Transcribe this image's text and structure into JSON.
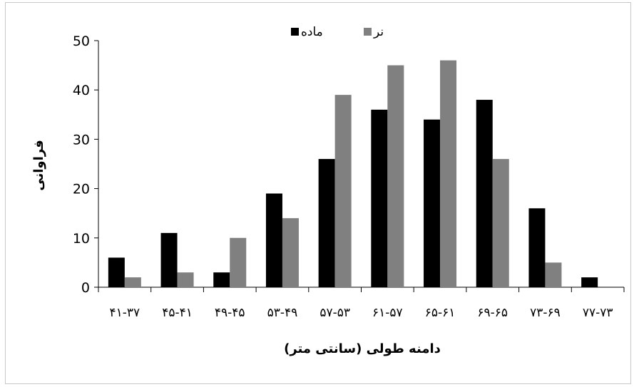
{
  "chart_data": {
    "type": "bar",
    "title": "",
    "xlabel": "دامنه طولی (سانتی متر)",
    "ylabel": "فراوانی",
    "ylim": [
      0,
      50
    ],
    "yticks": [
      "0",
      "10",
      "20",
      "30",
      "40",
      "50"
    ],
    "categories": [
      "۴۱-۳۷",
      "۴۵-۴۱",
      "۴۹-۴۵",
      "۵۳-۴۹",
      "۵۷-۵۳",
      "۶۱-۵۷",
      "۶۵-۶۱",
      "۶۹-۶۵",
      "۷۳-۶۹",
      "۷۷-۷۳"
    ],
    "series": [
      {
        "name": "ماده",
        "color": "#000000",
        "values": [
          6,
          11,
          3,
          19,
          26,
          36,
          34,
          38,
          16,
          2
        ]
      },
      {
        "name": "نر",
        "color": "#808080",
        "values": [
          2,
          3,
          10,
          14,
          39,
          45,
          46,
          26,
          5,
          0
        ]
      }
    ],
    "grid": false,
    "legend": "top-center"
  }
}
